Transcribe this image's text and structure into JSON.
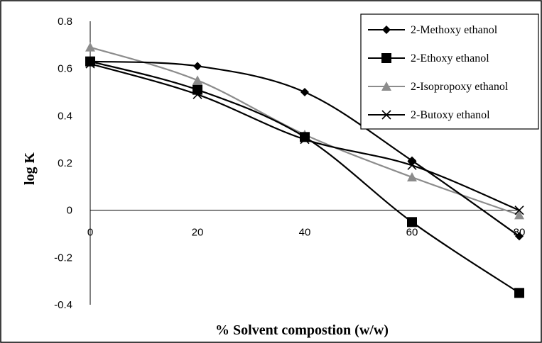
{
  "chart_data": {
    "type": "line",
    "title": "",
    "xlabel": "% Solvent compostion (w/w)",
    "ylabel": "log K",
    "x": [
      0,
      20,
      40,
      60,
      80
    ],
    "xticks": [
      "0",
      "20",
      "40",
      "60",
      "80"
    ],
    "yticks": [
      "0.8",
      "0.6",
      "0.4",
      "0.2",
      "0",
      "-0.2",
      "-0.4"
    ],
    "xlim": [
      0,
      80
    ],
    "ylim": [
      -0.4,
      0.8
    ],
    "grid": false,
    "smooth": true,
    "legend_position": "top-right",
    "series": [
      {
        "name": "2-Methoxy ethanol",
        "values": [
          0.63,
          0.61,
          0.5,
          0.21,
          -0.11
        ],
        "color": "#000000",
        "marker": "diamond"
      },
      {
        "name": "2-Ethoxy ethanol",
        "values": [
          0.63,
          0.51,
          0.31,
          -0.05,
          -0.35
        ],
        "color": "#000000",
        "marker": "square"
      },
      {
        "name": "2-Isopropoxy ethanol",
        "values": [
          0.69,
          0.55,
          0.32,
          0.14,
          -0.02
        ],
        "color": "#8c8c8c",
        "marker": "triangle"
      },
      {
        "name": "2-Butoxy ethanol",
        "values": [
          0.62,
          0.49,
          0.3,
          0.19,
          0.0
        ],
        "color": "#000000",
        "marker": "x"
      }
    ]
  }
}
